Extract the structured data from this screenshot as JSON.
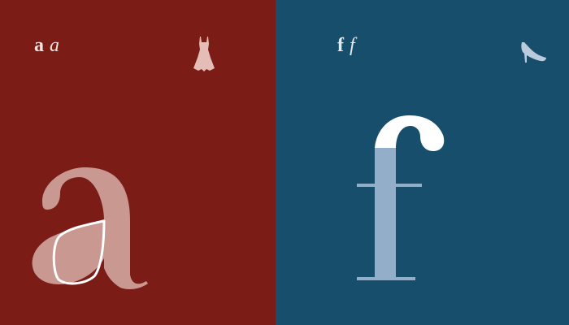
{
  "colors": {
    "panel_a_bg": "#7B1C17",
    "panel_a_glyph": "#C89891",
    "panel_a_outline": "#FFFFFF",
    "panel_a_label": "#F2E3DF",
    "panel_a_icon": "#E3BDB6",
    "panel_f_bg": "#174E6C",
    "panel_f_glyph": "#93AEC8",
    "panel_f_top": "#FFFFFF",
    "panel_f_label": "#E1E9F1",
    "panel_f_icon": "#B9CBDD"
  },
  "panel_a": {
    "regular_letter": "a",
    "italic_letter": "a",
    "icon": "dress-icon"
  },
  "panel_f": {
    "regular_letter": "f",
    "italic_letter": "f",
    "icon": "high-heel-shoe-icon"
  }
}
